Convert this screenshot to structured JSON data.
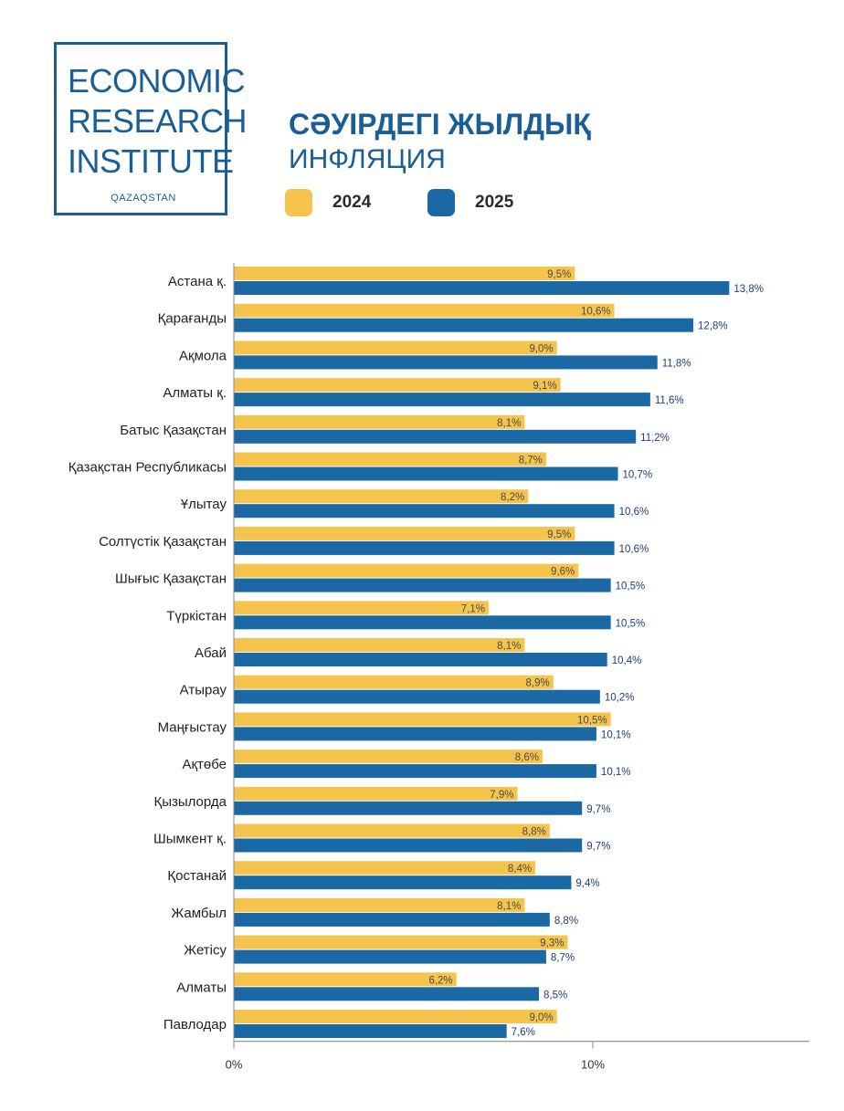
{
  "logo": {
    "lines": [
      "ECONOMIC",
      "RESEARCH",
      "INSTITUTE"
    ],
    "sub": "QAZAQSTAN"
  },
  "title": {
    "line1": "СӘУІРДЕГІ ЖЫЛДЫҚ",
    "line2": "ИНФЛЯЦИЯ"
  },
  "colors": {
    "series_2024": "#f5c44c",
    "series_2025": "#1a68a4",
    "label_2025": "#1f3d7a",
    "label_2024": "#4a4a4a",
    "brand": "#1a5e96"
  },
  "chart_data": {
    "type": "bar",
    "orientation": "horizontal",
    "categories": [
      "Астана қ.",
      "Қарағанды",
      "Ақмола",
      "Алматы қ.",
      "Батыс Қазақстан",
      "Қазақстан Республикасы",
      "Ұлытау",
      "Солтүстік Қазақстан",
      "Шығыс Қазақстан",
      "Түркістан",
      "Абай",
      "Атырау",
      "Маңғыстау",
      "Ақтөбе",
      "Қызылорда",
      "Шымкент қ.",
      "Қостанай",
      "Жамбыл",
      "Жетісу",
      "Алматы",
      "Павлодар"
    ],
    "series": [
      {
        "name": "2024",
        "values": [
          9.5,
          10.6,
          9.0,
          9.1,
          8.1,
          8.7,
          8.2,
          9.5,
          9.6,
          7.1,
          8.1,
          8.9,
          10.5,
          8.6,
          7.9,
          8.8,
          8.4,
          8.1,
          9.3,
          6.2,
          9.0
        ],
        "labels": [
          "9,5%",
          "10,6%",
          "9,0%",
          "9,1%",
          "8,1%",
          "8,7%",
          "8,2%",
          "9,5%",
          "9,6%",
          "7,1%",
          "8,1%",
          "8,9%",
          "10,5%",
          "8,6%",
          "7,9%",
          "8,8%",
          "8,4%",
          "8,1%",
          "9,3%",
          "6,2%",
          "9,0%"
        ]
      },
      {
        "name": "2025",
        "values": [
          13.8,
          12.8,
          11.8,
          11.6,
          11.2,
          10.7,
          10.6,
          10.6,
          10.5,
          10.5,
          10.4,
          10.2,
          10.1,
          10.1,
          9.7,
          9.7,
          9.4,
          8.8,
          8.7,
          8.5,
          7.6
        ],
        "labels": [
          "13,8%",
          "12,8%",
          "11,8%",
          "11,6%",
          "11,2%",
          "10,7%",
          "10,6%",
          "10,6%",
          "10,5%",
          "10,5%",
          "10,4%",
          "10,2%",
          "10,1%",
          "10,1%",
          "9,7%",
          "9,7%",
          "9,4%",
          "8,8%",
          "8,7%",
          "8,5%",
          "7,6%"
        ]
      }
    ],
    "xlim": [
      0,
      16
    ],
    "xticks": [
      0,
      10
    ],
    "xtick_labels": [
      "0%",
      "10%"
    ],
    "legend": [
      "2024",
      "2025"
    ],
    "legend_position": "top",
    "grid": false
  }
}
